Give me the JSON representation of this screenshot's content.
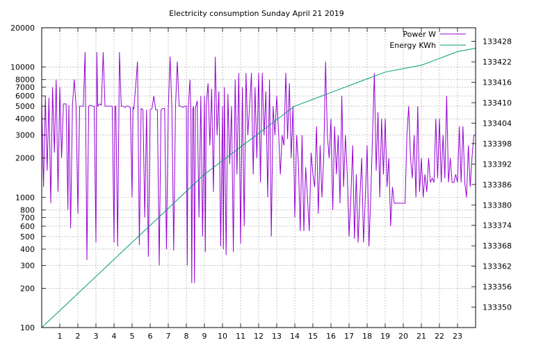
{
  "chart_data": {
    "type": "line",
    "title": "Electricity consumption Sunday April 21 2019",
    "xlabel": "",
    "ylabel": "",
    "x_range": [
      0,
      24
    ],
    "x_ticks": [
      "1",
      "2",
      "3",
      "4",
      "5",
      "6",
      "7",
      "8",
      "9",
      "10",
      "11",
      "12",
      "13",
      "14",
      "15",
      "16",
      "17",
      "18",
      "19",
      "20",
      "21",
      "22",
      "23"
    ],
    "y_left": {
      "scale": "log",
      "range": [
        100,
        20000
      ],
      "ticks": [
        100,
        200,
        300,
        400,
        500,
        600,
        700,
        800,
        1000,
        2000,
        3000,
        4000,
        5000,
        6000,
        7000,
        8000,
        10000,
        20000
      ]
    },
    "y_right": {
      "scale": "linear",
      "range": [
        133344,
        133432
      ],
      "ticks": [
        133350,
        133356,
        133362,
        133368,
        133374,
        133380,
        133386,
        133392,
        133398,
        133404,
        133410,
        133416,
        133422,
        133428
      ]
    },
    "grid": true,
    "legend_position": "top-right",
    "series": [
      {
        "name": "Power W",
        "axis": "left",
        "color": "#9400d3",
        "points": [
          [
            0.0,
            5200
          ],
          [
            0.1,
            1200
          ],
          [
            0.2,
            6000
          ],
          [
            0.3,
            1600
          ],
          [
            0.4,
            5800
          ],
          [
            0.5,
            900
          ],
          [
            0.6,
            7000
          ],
          [
            0.7,
            2200
          ],
          [
            0.8,
            8000
          ],
          [
            0.9,
            1100
          ],
          [
            1.0,
            7000
          ],
          [
            1.1,
            2000
          ],
          [
            1.2,
            5200
          ],
          [
            1.35,
            5200
          ],
          [
            1.45,
            800
          ],
          [
            1.5,
            5100
          ],
          [
            1.6,
            580
          ],
          [
            1.7,
            5100
          ],
          [
            1.8,
            8000
          ],
          [
            1.9,
            5000
          ],
          [
            2.0,
            750
          ],
          [
            2.1,
            5000
          ],
          [
            2.2,
            5000
          ],
          [
            2.3,
            5000
          ],
          [
            2.4,
            13000
          ],
          [
            2.5,
            330
          ],
          [
            2.6,
            5000
          ],
          [
            2.7,
            5100
          ],
          [
            2.8,
            5000
          ],
          [
            2.9,
            5000
          ],
          [
            3.0,
            450
          ],
          [
            3.05,
            13000
          ],
          [
            3.1,
            5000
          ],
          [
            3.2,
            5200
          ],
          [
            3.3,
            5100
          ],
          [
            3.4,
            13000
          ],
          [
            3.5,
            5000
          ],
          [
            3.6,
            5000
          ],
          [
            3.7,
            5000
          ],
          [
            3.8,
            5000
          ],
          [
            3.9,
            5000
          ],
          [
            4.0,
            450
          ],
          [
            4.05,
            5000
          ],
          [
            4.1,
            5000
          ],
          [
            4.2,
            420
          ],
          [
            4.3,
            13000
          ],
          [
            4.4,
            5000
          ],
          [
            4.5,
            5000
          ],
          [
            4.6,
            4900
          ],
          [
            4.7,
            5000
          ],
          [
            4.8,
            5000
          ],
          [
            4.9,
            4900
          ],
          [
            5.0,
            1000
          ],
          [
            5.05,
            4900
          ],
          [
            5.1,
            4800
          ],
          [
            5.3,
            11000
          ],
          [
            5.4,
            430
          ],
          [
            5.5,
            4800
          ],
          [
            5.6,
            4700
          ],
          [
            5.7,
            700
          ],
          [
            5.8,
            4700
          ],
          [
            5.9,
            350
          ],
          [
            6.0,
            4700
          ],
          [
            6.1,
            4800
          ],
          [
            6.2,
            6000
          ],
          [
            6.3,
            4700
          ],
          [
            6.4,
            4700
          ],
          [
            6.5,
            300
          ],
          [
            6.6,
            4700
          ],
          [
            6.7,
            4800
          ],
          [
            6.8,
            4800
          ],
          [
            6.9,
            400
          ],
          [
            7.0,
            4700
          ],
          [
            7.1,
            12000
          ],
          [
            7.2,
            4800
          ],
          [
            7.3,
            390
          ],
          [
            7.4,
            4900
          ],
          [
            7.5,
            11000
          ],
          [
            7.6,
            5000
          ],
          [
            7.7,
            5000
          ],
          [
            7.8,
            4900
          ],
          [
            7.9,
            5000
          ],
          [
            8.0,
            5000
          ],
          [
            8.05,
            300
          ],
          [
            8.1,
            4700
          ],
          [
            8.2,
            8000
          ],
          [
            8.25,
            4800
          ],
          [
            8.3,
            220
          ],
          [
            8.35,
            4700
          ],
          [
            8.4,
            5000
          ],
          [
            8.45,
            220
          ],
          [
            8.5,
            4800
          ],
          [
            8.6,
            5500
          ],
          [
            8.7,
            700
          ],
          [
            8.8,
            6000
          ],
          [
            8.9,
            500
          ],
          [
            9.0,
            6000
          ],
          [
            9.05,
            380
          ],
          [
            9.1,
            5000
          ],
          [
            9.2,
            7500
          ],
          [
            9.3,
            2500
          ],
          [
            9.4,
            6800
          ],
          [
            9.5,
            1100
          ],
          [
            9.6,
            12000
          ],
          [
            9.7,
            3000
          ],
          [
            9.8,
            6500
          ],
          [
            9.9,
            420
          ],
          [
            10.0,
            5000
          ],
          [
            10.05,
            400
          ],
          [
            10.1,
            7000
          ],
          [
            10.2,
            360
          ],
          [
            10.3,
            6200
          ],
          [
            10.4,
            1800
          ],
          [
            10.5,
            5000
          ],
          [
            10.6,
            380
          ],
          [
            10.7,
            8000
          ],
          [
            10.8,
            1500
          ],
          [
            10.9,
            9000
          ],
          [
            11.0,
            440
          ],
          [
            11.1,
            7000
          ],
          [
            11.2,
            600
          ],
          [
            11.3,
            9000
          ],
          [
            11.4,
            3000
          ],
          [
            11.5,
            5000
          ],
          [
            11.6,
            9000
          ],
          [
            11.7,
            1500
          ],
          [
            11.8,
            7000
          ],
          [
            11.9,
            2000
          ],
          [
            12.0,
            9000
          ],
          [
            12.1,
            1300
          ],
          [
            12.2,
            9000
          ],
          [
            12.3,
            3000
          ],
          [
            12.4,
            6500
          ],
          [
            12.5,
            1000
          ],
          [
            12.6,
            8000
          ],
          [
            12.7,
            500
          ],
          [
            12.8,
            5000
          ],
          [
            12.9,
            3000
          ],
          [
            13.0,
            6000
          ],
          [
            13.1,
            3200
          ],
          [
            13.2,
            1500
          ],
          [
            13.3,
            3000
          ],
          [
            13.4,
            2500
          ],
          [
            13.5,
            9000
          ],
          [
            13.6,
            2800
          ],
          [
            13.7,
            7500
          ],
          [
            13.8,
            2000
          ],
          [
            13.9,
            5000
          ],
          [
            14.0,
            700
          ],
          [
            14.1,
            3000
          ],
          [
            14.2,
            1800
          ],
          [
            14.3,
            550
          ],
          [
            14.4,
            3000
          ],
          [
            14.5,
            550
          ],
          [
            14.6,
            1700
          ],
          [
            14.7,
            1000
          ],
          [
            14.8,
            550
          ],
          [
            14.9,
            2200
          ],
          [
            15.0,
            1500
          ],
          [
            15.1,
            1200
          ],
          [
            15.2,
            3500
          ],
          [
            15.3,
            750
          ],
          [
            15.4,
            2500
          ],
          [
            15.5,
            1000
          ],
          [
            15.6,
            2000
          ],
          [
            15.7,
            11000
          ],
          [
            15.8,
            3000
          ],
          [
            15.9,
            2000
          ],
          [
            16.0,
            4000
          ],
          [
            16.1,
            800
          ],
          [
            16.2,
            3500
          ],
          [
            16.3,
            1500
          ],
          [
            16.4,
            3000
          ],
          [
            16.5,
            900
          ],
          [
            16.6,
            6000
          ],
          [
            16.7,
            1200
          ],
          [
            16.8,
            3000
          ],
          [
            16.9,
            1500
          ],
          [
            17.0,
            500
          ],
          [
            17.1,
            1000
          ],
          [
            17.2,
            2500
          ],
          [
            17.3,
            480
          ],
          [
            17.4,
            1500
          ],
          [
            17.5,
            450
          ],
          [
            17.6,
            1000
          ],
          [
            17.7,
            2000
          ],
          [
            17.8,
            450
          ],
          [
            17.9,
            1000
          ],
          [
            18.0,
            2500
          ],
          [
            18.1,
            420
          ],
          [
            18.2,
            1000
          ],
          [
            18.3,
            3000
          ],
          [
            18.4,
            9000
          ],
          [
            18.5,
            1600
          ],
          [
            18.6,
            4500
          ],
          [
            18.7,
            1000
          ],
          [
            18.8,
            4000
          ],
          [
            18.9,
            1500
          ],
          [
            19.0,
            4000
          ],
          [
            19.1,
            1200
          ],
          [
            19.2,
            2000
          ],
          [
            19.3,
            600
          ],
          [
            19.4,
            1200
          ],
          [
            19.5,
            900
          ],
          [
            19.6,
            900
          ],
          [
            19.7,
            900
          ],
          [
            19.8,
            900
          ],
          [
            20.0,
            900
          ],
          [
            20.1,
            900
          ],
          [
            20.2,
            3000
          ],
          [
            20.3,
            5000
          ],
          [
            20.4,
            2000
          ],
          [
            20.5,
            1400
          ],
          [
            20.6,
            3000
          ],
          [
            20.7,
            1000
          ],
          [
            20.8,
            5000
          ],
          [
            20.9,
            1100
          ],
          [
            21.0,
            2000
          ],
          [
            21.1,
            1000
          ],
          [
            21.2,
            1500
          ],
          [
            21.3,
            1100
          ],
          [
            21.4,
            2000
          ],
          [
            21.5,
            1300
          ],
          [
            21.6,
            1400
          ],
          [
            21.7,
            1300
          ],
          [
            21.8,
            4000
          ],
          [
            21.9,
            1400
          ],
          [
            22.0,
            4000
          ],
          [
            22.1,
            1300
          ],
          [
            22.2,
            3000
          ],
          [
            22.3,
            1400
          ],
          [
            22.4,
            6000
          ],
          [
            22.5,
            1300
          ],
          [
            22.6,
            2000
          ],
          [
            22.7,
            1300
          ],
          [
            22.8,
            1300
          ],
          [
            22.9,
            1500
          ],
          [
            23.0,
            1300
          ],
          [
            23.1,
            3500
          ],
          [
            23.2,
            1300
          ],
          [
            23.3,
            3500
          ],
          [
            23.4,
            1300
          ],
          [
            23.5,
            1000
          ],
          [
            23.6,
            2500
          ],
          [
            23.7,
            1200
          ],
          [
            23.8,
            2000
          ],
          [
            23.9,
            3000
          ],
          [
            24.0,
            3000
          ]
        ]
      },
      {
        "name": "Energy KWh",
        "axis": "right",
        "color": "#009e73",
        "points": [
          [
            0,
            133344
          ],
          [
            1,
            133349
          ],
          [
            2,
            133354
          ],
          [
            3,
            133359
          ],
          [
            4,
            133364
          ],
          [
            5,
            133369
          ],
          [
            6,
            133374
          ],
          [
            7,
            133379
          ],
          [
            8,
            133384
          ],
          [
            9,
            133389
          ],
          [
            10,
            133393
          ],
          [
            11,
            133397
          ],
          [
            12,
            133401
          ],
          [
            13,
            133405
          ],
          [
            14,
            133409
          ],
          [
            15,
            133411
          ],
          [
            16,
            133413
          ],
          [
            17,
            133415
          ],
          [
            18,
            133417
          ],
          [
            19,
            133419
          ],
          [
            20,
            133420
          ],
          [
            21,
            133421
          ],
          [
            22,
            133423
          ],
          [
            23,
            133425
          ],
          [
            24,
            133426
          ]
        ]
      }
    ]
  }
}
